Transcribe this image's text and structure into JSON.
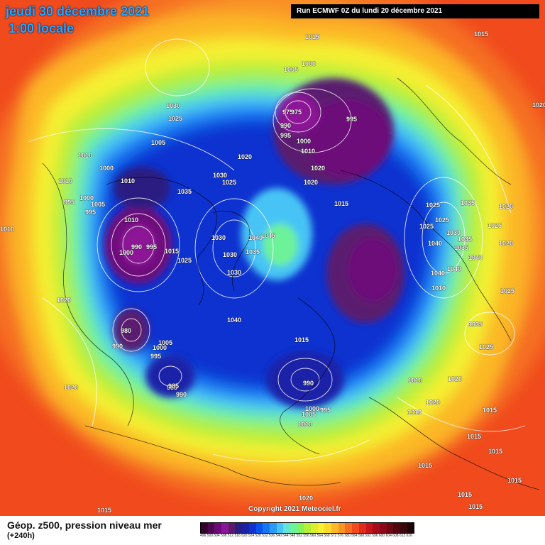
{
  "header": {
    "date": "jeudi 30 décembre 2021",
    "time": "1:00 locale",
    "run": "Run ECMWF 0Z du lundi 20 décembre 2021"
  },
  "copyright": "Copyright 2021 Meteociel.fr",
  "legend": {
    "title": "Géop. z500, pression niveau mer",
    "subtitle": "(+240h)",
    "scale_values": [
      "496",
      "500",
      "504",
      "508",
      "512",
      "516",
      "520",
      "524",
      "528",
      "532",
      "536",
      "540",
      "544",
      "548",
      "552",
      "556",
      "560",
      "564",
      "568",
      "572",
      "576",
      "580",
      "584",
      "588",
      "592",
      "596",
      "600",
      "604",
      "608",
      "612",
      "616"
    ],
    "scale_colors": [
      "#35022e",
      "#4d0650",
      "#6d0a7a",
      "#8c1496",
      "#5a1a6e",
      "#2a1f80",
      "#1a23a8",
      "#1033d0",
      "#0a52ee",
      "#1276f5",
      "#2b9bf7",
      "#46c4f5",
      "#62e2d9",
      "#6df29a",
      "#86f25a",
      "#b4ef3a",
      "#dbef2b",
      "#f5f030",
      "#fbd92a",
      "#fbb828",
      "#f99426",
      "#f56e22",
      "#f04a1d",
      "#e3281c",
      "#c6161b",
      "#a80c1a",
      "#8a0818",
      "#6a0814",
      "#520710",
      "#3a060c",
      "#1e0306"
    ]
  },
  "map": {
    "isobar_labels": [
      {
        "text": "1015"
      },
      {
        "text": "1015"
      },
      {
        "text": "1000"
      },
      {
        "text": "1005"
      },
      {
        "text": "975"
      },
      {
        "text": "975"
      },
      {
        "text": "995"
      },
      {
        "text": "990"
      },
      {
        "text": "995"
      },
      {
        "text": "1000"
      },
      {
        "text": "1010"
      },
      {
        "text": "1030"
      },
      {
        "text": "1025"
      },
      {
        "text": "1005"
      },
      {
        "text": "1010"
      },
      {
        "text": "1000"
      },
      {
        "text": "1010"
      },
      {
        "text": "1020"
      },
      {
        "text": "1030"
      },
      {
        "text": "1025"
      },
      {
        "text": "1020"
      },
      {
        "text": "1020"
      },
      {
        "text": "1015"
      },
      {
        "text": "1010"
      },
      {
        "text": "1035"
      },
      {
        "text": "1000"
      },
      {
        "text": "1005"
      },
      {
        "text": "995"
      },
      {
        "text": "995"
      },
      {
        "text": "1010"
      },
      {
        "text": "990"
      },
      {
        "text": "995"
      },
      {
        "text": "1000"
      },
      {
        "text": "1015"
      },
      {
        "text": "1025"
      },
      {
        "text": "1030"
      },
      {
        "text": "1045"
      },
      {
        "text": "1040"
      },
      {
        "text": "1030"
      },
      {
        "text": "1035"
      },
      {
        "text": "1030"
      },
      {
        "text": "1025"
      },
      {
        "text": "1025"
      },
      {
        "text": "1035"
      },
      {
        "text": "1020"
      },
      {
        "text": "1025"
      },
      {
        "text": "1025"
      },
      {
        "text": "1030"
      },
      {
        "text": "1035"
      },
      {
        "text": "1040"
      },
      {
        "text": "1035"
      },
      {
        "text": "1020"
      },
      {
        "text": "1040"
      },
      {
        "text": "1040"
      },
      {
        "text": "1040"
      },
      {
        "text": "1025"
      },
      {
        "text": "1010"
      },
      {
        "text": "1020"
      },
      {
        "text": "1040"
      },
      {
        "text": "980"
      },
      {
        "text": "990"
      },
      {
        "text": "985"
      },
      {
        "text": "1005"
      },
      {
        "text": "1000"
      },
      {
        "text": "995"
      },
      {
        "text": "985"
      },
      {
        "text": "990"
      },
      {
        "text": "1015"
      },
      {
        "text": "1035"
      },
      {
        "text": "1025"
      },
      {
        "text": "1020"
      },
      {
        "text": "990"
      },
      {
        "text": "1010"
      },
      {
        "text": "1020"
      },
      {
        "text": "1020"
      },
      {
        "text": "1010"
      },
      {
        "text": "1000"
      },
      {
        "text": "1005"
      },
      {
        "text": "995"
      },
      {
        "text": "1010"
      },
      {
        "text": "1015"
      },
      {
        "text": "1015"
      },
      {
        "text": "1015"
      },
      {
        "text": "1015"
      },
      {
        "text": "1015"
      },
      {
        "text": "1020"
      },
      {
        "text": "1015"
      },
      {
        "text": "1015"
      },
      {
        "text": "1015"
      },
      {
        "text": "1020"
      },
      {
        "text": "1010"
      }
    ]
  }
}
